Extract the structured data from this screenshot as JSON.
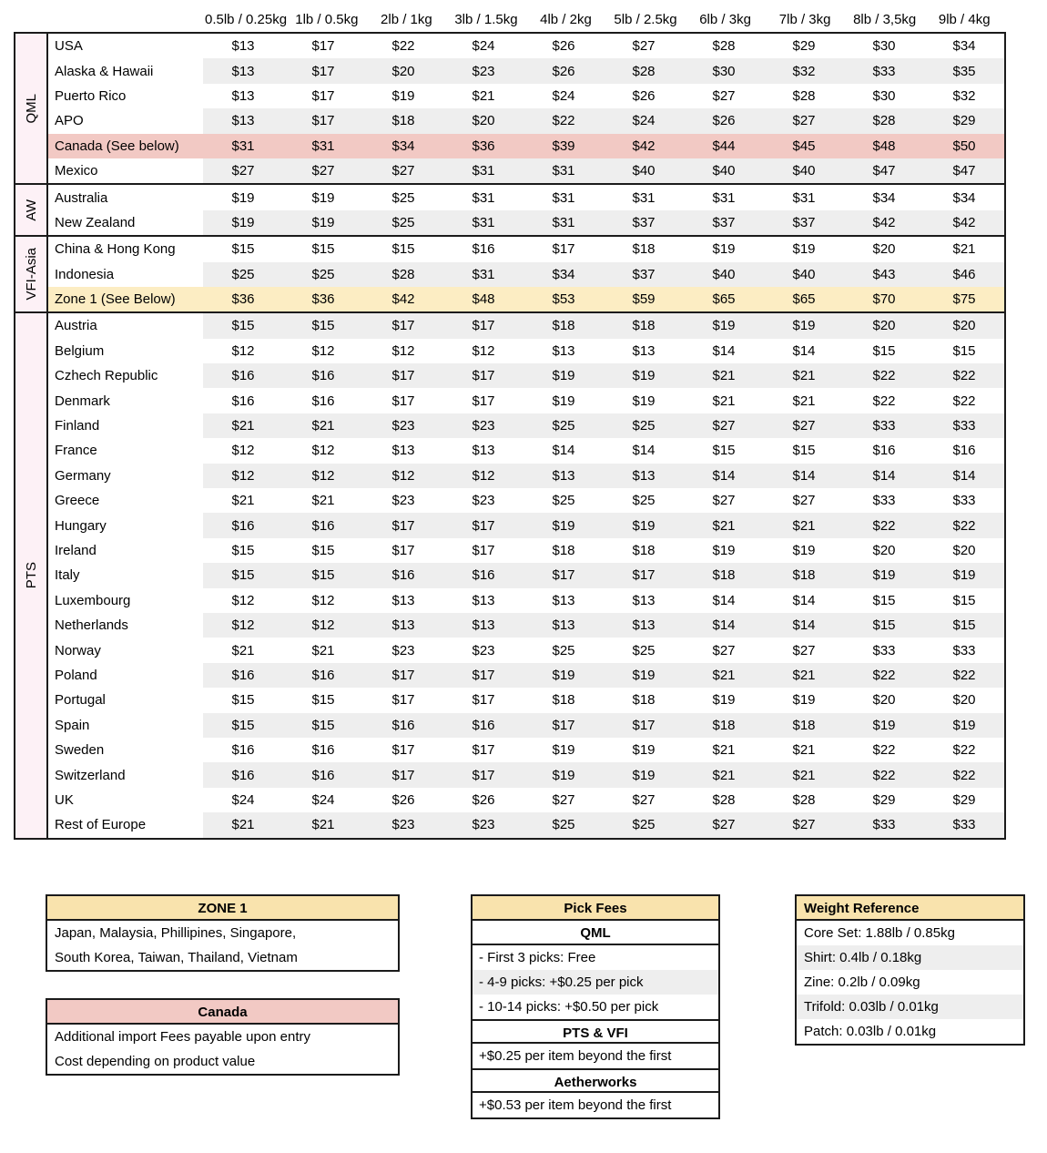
{
  "rate_table": {
    "weight_columns": [
      "0.5lb / 0.25kg",
      "1lb / 0.5kg",
      "2lb / 1kg",
      "3lb / 1.5kg",
      "4lb / 2kg",
      "5lb / 2.5kg",
      "6lb / 3kg",
      "7lb / 3kg",
      "8lb / 3,5kg",
      "9lb / 4kg"
    ],
    "groups": [
      {
        "name": "QML",
        "rows": [
          {
            "label": "USA",
            "values": [
              "$13",
              "$17",
              "$22",
              "$24",
              "$26",
              "$27",
              "$28",
              "$29",
              "$30",
              "$34"
            ],
            "highlight": null
          },
          {
            "label": "Alaska & Hawaii",
            "values": [
              "$13",
              "$17",
              "$20",
              "$23",
              "$26",
              "$28",
              "$30",
              "$32",
              "$33",
              "$35"
            ],
            "highlight": null
          },
          {
            "label": "Puerto Rico",
            "values": [
              "$13",
              "$17",
              "$19",
              "$21",
              "$24",
              "$26",
              "$27",
              "$28",
              "$30",
              "$32"
            ],
            "highlight": null
          },
          {
            "label": "APO",
            "values": [
              "$13",
              "$17",
              "$18",
              "$20",
              "$22",
              "$24",
              "$26",
              "$27",
              "$28",
              "$29"
            ],
            "highlight": null
          },
          {
            "label": "Canada (See below)",
            "values": [
              "$31",
              "$31",
              "$34",
              "$36",
              "$39",
              "$42",
              "$44",
              "$45",
              "$48",
              "$50"
            ],
            "highlight": "pink"
          },
          {
            "label": "Mexico",
            "values": [
              "$27",
              "$27",
              "$27",
              "$31",
              "$31",
              "$40",
              "$40",
              "$40",
              "$47",
              "$47"
            ],
            "highlight": null
          }
        ]
      },
      {
        "name": "AW",
        "rows": [
          {
            "label": "Australia",
            "values": [
              "$19",
              "$19",
              "$25",
              "$31",
              "$31",
              "$31",
              "$31",
              "$31",
              "$34",
              "$34"
            ],
            "highlight": null
          },
          {
            "label": "New Zealand",
            "values": [
              "$19",
              "$19",
              "$25",
              "$31",
              "$31",
              "$37",
              "$37",
              "$37",
              "$42",
              "$42"
            ],
            "highlight": null
          }
        ]
      },
      {
        "name": "VFI-Asia",
        "rows": [
          {
            "label": "China & Hong Kong",
            "values": [
              "$15",
              "$15",
              "$15",
              "$16",
              "$17",
              "$18",
              "$19",
              "$19",
              "$20",
              "$21"
            ],
            "highlight": null
          },
          {
            "label": "Indonesia",
            "values": [
              "$25",
              "$25",
              "$28",
              "$31",
              "$34",
              "$37",
              "$40",
              "$40",
              "$43",
              "$46"
            ],
            "highlight": null
          },
          {
            "label": "Zone 1 (See Below)",
            "values": [
              "$36",
              "$36",
              "$42",
              "$48",
              "$53",
              "$59",
              "$65",
              "$65",
              "$70",
              "$75"
            ],
            "highlight": "yellow"
          }
        ]
      },
      {
        "name": "PTS",
        "rows": [
          {
            "label": "Austria",
            "values": [
              "$15",
              "$15",
              "$17",
              "$17",
              "$18",
              "$18",
              "$19",
              "$19",
              "$20",
              "$20"
            ],
            "highlight": null
          },
          {
            "label": "Belgium",
            "values": [
              "$12",
              "$12",
              "$12",
              "$12",
              "$13",
              "$13",
              "$14",
              "$14",
              "$15",
              "$15"
            ],
            "highlight": null
          },
          {
            "label": "Czhech Republic",
            "values": [
              "$16",
              "$16",
              "$17",
              "$17",
              "$19",
              "$19",
              "$21",
              "$21",
              "$22",
              "$22"
            ],
            "highlight": null
          },
          {
            "label": "Denmark",
            "values": [
              "$16",
              "$16",
              "$17",
              "$17",
              "$19",
              "$19",
              "$21",
              "$21",
              "$22",
              "$22"
            ],
            "highlight": null
          },
          {
            "label": "Finland",
            "values": [
              "$21",
              "$21",
              "$23",
              "$23",
              "$25",
              "$25",
              "$27",
              "$27",
              "$33",
              "$33"
            ],
            "highlight": null
          },
          {
            "label": "France",
            "values": [
              "$12",
              "$12",
              "$13",
              "$13",
              "$14",
              "$14",
              "$15",
              "$15",
              "$16",
              "$16"
            ],
            "highlight": null
          },
          {
            "label": "Germany",
            "values": [
              "$12",
              "$12",
              "$12",
              "$12",
              "$13",
              "$13",
              "$14",
              "$14",
              "$14",
              "$14"
            ],
            "highlight": null
          },
          {
            "label": "Greece",
            "values": [
              "$21",
              "$21",
              "$23",
              "$23",
              "$25",
              "$25",
              "$27",
              "$27",
              "$33",
              "$33"
            ],
            "highlight": null
          },
          {
            "label": "Hungary",
            "values": [
              "$16",
              "$16",
              "$17",
              "$17",
              "$19",
              "$19",
              "$21",
              "$21",
              "$22",
              "$22"
            ],
            "highlight": null
          },
          {
            "label": "Ireland",
            "values": [
              "$15",
              "$15",
              "$17",
              "$17",
              "$18",
              "$18",
              "$19",
              "$19",
              "$20",
              "$20"
            ],
            "highlight": null
          },
          {
            "label": "Italy",
            "values": [
              "$15",
              "$15",
              "$16",
              "$16",
              "$17",
              "$17",
              "$18",
              "$18",
              "$19",
              "$19"
            ],
            "highlight": null
          },
          {
            "label": "Luxembourg",
            "values": [
              "$12",
              "$12",
              "$13",
              "$13",
              "$13",
              "$13",
              "$14",
              "$14",
              "$15",
              "$15"
            ],
            "highlight": null
          },
          {
            "label": "Netherlands",
            "values": [
              "$12",
              "$12",
              "$13",
              "$13",
              "$13",
              "$13",
              "$14",
              "$14",
              "$15",
              "$15"
            ],
            "highlight": null
          },
          {
            "label": "Norway",
            "values": [
              "$21",
              "$21",
              "$23",
              "$23",
              "$25",
              "$25",
              "$27",
              "$27",
              "$33",
              "$33"
            ],
            "highlight": null
          },
          {
            "label": "Poland",
            "values": [
              "$16",
              "$16",
              "$17",
              "$17",
              "$19",
              "$19",
              "$21",
              "$21",
              "$22",
              "$22"
            ],
            "highlight": null
          },
          {
            "label": "Portugal",
            "values": [
              "$15",
              "$15",
              "$17",
              "$17",
              "$18",
              "$18",
              "$19",
              "$19",
              "$20",
              "$20"
            ],
            "highlight": null
          },
          {
            "label": "Spain",
            "values": [
              "$15",
              "$15",
              "$16",
              "$16",
              "$17",
              "$17",
              "$18",
              "$18",
              "$19",
              "$19"
            ],
            "highlight": null
          },
          {
            "label": "Sweden",
            "values": [
              "$16",
              "$16",
              "$17",
              "$17",
              "$19",
              "$19",
              "$21",
              "$21",
              "$22",
              "$22"
            ],
            "highlight": null
          },
          {
            "label": "Switzerland",
            "values": [
              "$16",
              "$16",
              "$17",
              "$17",
              "$19",
              "$19",
              "$21",
              "$21",
              "$22",
              "$22"
            ],
            "highlight": null
          },
          {
            "label": "UK",
            "values": [
              "$24",
              "$24",
              "$26",
              "$26",
              "$27",
              "$27",
              "$28",
              "$28",
              "$29",
              "$29"
            ],
            "highlight": null
          },
          {
            "label": "Rest of Europe",
            "values": [
              "$21",
              "$21",
              "$23",
              "$23",
              "$25",
              "$25",
              "$27",
              "$27",
              "$33",
              "$33"
            ],
            "highlight": null
          }
        ]
      }
    ]
  },
  "zone1_box": {
    "title": "ZONE 1",
    "lines": [
      "Japan, Malaysia, Phillipines, Singapore,",
      "South Korea, Taiwan, Thailand, Vietnam"
    ]
  },
  "canada_box": {
    "title": "Canada",
    "lines": [
      "Additional import Fees payable upon entry",
      "Cost depending on product value"
    ]
  },
  "pick_fees_box": {
    "title": "Pick Fees",
    "sections": [
      {
        "heading": "QML",
        "items": [
          "- First 3 picks: Free",
          "- 4-9 picks: +$0.25 per pick",
          "- 10-14 picks: +$0.50 per pick"
        ]
      },
      {
        "heading": "PTS & VFI",
        "items": [
          "+$0.25 per item beyond the first"
        ]
      },
      {
        "heading": "Aetherworks",
        "items": [
          "+$0.53 per item beyond the first"
        ]
      }
    ]
  },
  "weight_reference_box": {
    "title": "Weight Reference",
    "items": [
      "Core Set: 1.88lb / 0.85kg",
      "Shirt: 0.4lb / 0.18kg",
      "Zine: 0.2lb / 0.09kg",
      "Trifold: 0.03lb / 0.01kg",
      "Patch: 0.03lb / 0.01kg"
    ]
  },
  "colors": {
    "stripe_gray": "#eeeeee",
    "highlight_pink": "#f2c9c4",
    "highlight_yellow": "#fcedc3",
    "group_strip_pink": "#fdf1f6",
    "box_header_yellow": "#f9e3ad",
    "border_black": "#1b1b1b"
  }
}
